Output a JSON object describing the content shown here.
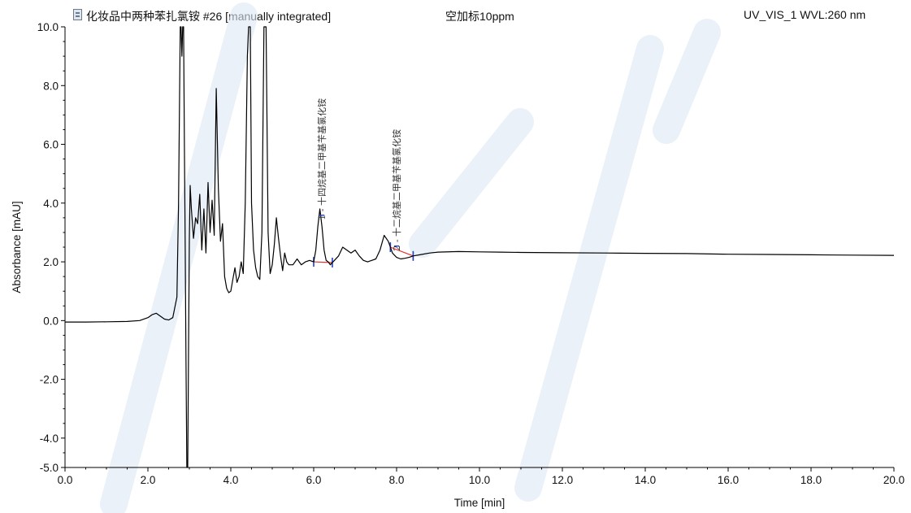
{
  "header": {
    "title": "化妆品中两种苯扎氯铵 #26 [manually integrated]",
    "sample": "空加标10ppm",
    "channel": "UV_VIS_1 WVL:260 nm",
    "icon": "document-icon"
  },
  "chart_data": {
    "type": "line",
    "xlabel": "Time [min]",
    "ylabel": "Absorbance [mAU]",
    "xlim": [
      0.0,
      20.0
    ],
    "ylim": [
      -5.0,
      10.0
    ],
    "x_ticks": [
      "0.0",
      "2.0",
      "4.0",
      "6.0",
      "8.0",
      "10.0",
      "12.0",
      "14.0",
      "16.0",
      "18.0",
      "20.0"
    ],
    "y_ticks": [
      "10.0",
      "8.0",
      "6.0",
      "4.0",
      "2.0",
      "0.0",
      "-2.0",
      "-4.0",
      "-5.0"
    ],
    "y_tick_values": [
      10.0,
      8.0,
      6.0,
      4.0,
      2.0,
      0.0,
      -2.0,
      -4.0,
      -5.0
    ],
    "grid": false,
    "series": [
      {
        "color": "#000000",
        "x": [
          0.0,
          0.5,
          1.0,
          1.5,
          1.8,
          2.0,
          2.1,
          2.2,
          2.3,
          2.4,
          2.5,
          2.6,
          2.7,
          2.74,
          2.78,
          2.8,
          2.82,
          2.84,
          2.86,
          2.88,
          2.9,
          2.92,
          2.94,
          2.96,
          2.98,
          3.0,
          3.02,
          3.05,
          3.1,
          3.15,
          3.2,
          3.25,
          3.3,
          3.35,
          3.4,
          3.45,
          3.5,
          3.55,
          3.6,
          3.65,
          3.7,
          3.75,
          3.8,
          3.85,
          3.9,
          3.95,
          4.0,
          4.05,
          4.1,
          4.15,
          4.2,
          4.25,
          4.3,
          4.35,
          4.4,
          4.43,
          4.47,
          4.5,
          4.55,
          4.6,
          4.65,
          4.7,
          4.75,
          4.8,
          4.85,
          4.9,
          4.95,
          5.0,
          5.05,
          5.1,
          5.15,
          5.2,
          5.25,
          5.3,
          5.35,
          5.4,
          5.5,
          5.6,
          5.7,
          5.8,
          5.9,
          6.0,
          6.05,
          6.1,
          6.15,
          6.2,
          6.25,
          6.3,
          6.35,
          6.4,
          6.5,
          6.6,
          6.7,
          6.8,
          6.9,
          7.0,
          7.1,
          7.2,
          7.3,
          7.4,
          7.5,
          7.6,
          7.7,
          7.8,
          7.9,
          8.0,
          8.1,
          8.2,
          8.3,
          8.4,
          8.6,
          8.8,
          9.0,
          9.5,
          10.0,
          10.5,
          11.0,
          12.0,
          13.0,
          14.0,
          15.0,
          16.0,
          17.0,
          18.0,
          19.0,
          20.0
        ],
        "values": [
          -0.05,
          -0.05,
          -0.04,
          -0.03,
          0.0,
          0.1,
          0.2,
          0.25,
          0.15,
          0.05,
          0.02,
          0.1,
          0.8,
          4.0,
          10.0,
          10.0,
          9.0,
          10.0,
          10.0,
          6.0,
          2.5,
          -1.5,
          -5.0,
          -5.0,
          -1.0,
          2.8,
          4.6,
          3.8,
          2.8,
          3.5,
          3.3,
          4.3,
          2.4,
          3.8,
          2.3,
          4.7,
          3.0,
          4.1,
          2.9,
          7.9,
          4.5,
          2.7,
          3.3,
          1.5,
          1.1,
          0.95,
          1.0,
          1.4,
          1.8,
          1.3,
          1.5,
          2.0,
          1.6,
          4.0,
          9.0,
          10.0,
          10.0,
          4.0,
          2.4,
          1.8,
          1.5,
          1.4,
          3.0,
          10.0,
          10.0,
          3.0,
          1.6,
          1.9,
          2.6,
          3.5,
          2.8,
          2.2,
          1.7,
          2.3,
          2.0,
          1.9,
          1.9,
          2.1,
          1.9,
          2.0,
          2.05,
          2.0,
          2.4,
          3.2,
          3.8,
          3.2,
          2.4,
          2.05,
          2.0,
          1.9,
          2.05,
          2.2,
          2.5,
          2.4,
          2.3,
          2.4,
          2.2,
          2.05,
          2.0,
          2.05,
          2.1,
          2.4,
          2.9,
          2.7,
          2.3,
          2.15,
          2.1,
          2.12,
          2.15,
          2.2,
          2.25,
          2.3,
          2.33,
          2.35,
          2.34,
          2.33,
          2.32,
          2.31,
          2.3,
          2.29,
          2.28,
          2.26,
          2.25,
          2.24,
          2.23,
          2.22
        ]
      }
    ],
    "peaks": [
      {
        "number": "1",
        "label": "1 - 十四烷基二甲基苄基氯化铵",
        "rt": 6.2,
        "baseline": [
          6.0,
          6.45
        ]
      },
      {
        "number": "2",
        "label": "2 - 十二烷基二甲基苄基氯化铵",
        "rt": 8.0,
        "baseline": [
          7.85,
          8.4
        ]
      }
    ],
    "colors": {
      "trace": "#000000",
      "baseline": "#e03030",
      "integration_marks": "#1f3fd1",
      "watermark": "#dde8f6"
    }
  }
}
